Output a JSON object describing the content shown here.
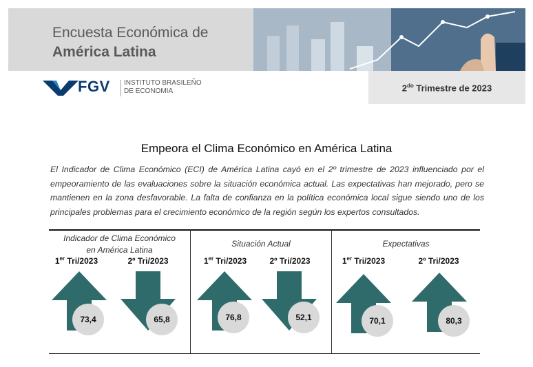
{
  "banner": {
    "title_line1": "Encuesta Económica de",
    "title_line2": "América Latina"
  },
  "logo": {
    "wordmark": "FGV",
    "subtitle_line1": "INSTITUTO BRASILEÑO",
    "subtitle_line2": "DE ECONOMIA",
    "brand_color": "#0b3b6e"
  },
  "quarter": {
    "number": "2",
    "superscript": "do",
    "text": " Trimestre de 2023"
  },
  "headline": "Empeora el Clima Económico en América Latina",
  "intro": "El Indicador de Clima Económico (ECI) de América Latina cayó en el 2º trimestre de 2023 influenciado por el empeoramiento de las evaluaciones sobre la situación económica actual. Las expectativas han mejorado, pero se mantienen en la zona desfavorable. La falta de confianza en la política económica local sigue siendo uno de los principales problemas para el crecimiento económico de la región según los expertos consultados.",
  "arrow_color": "#2e6b6a",
  "sections": [
    {
      "title_line1": "Indicador de Clima Económico",
      "title_line2": "en América Latina",
      "items": [
        {
          "q_num": "1",
          "q_sup": "er",
          "q_text": " Tri/2023",
          "direction": "up",
          "value": "73,4"
        },
        {
          "q_num": "2",
          "q_sup": "",
          "q_text": "º Tri/2023",
          "direction": "down",
          "value": "65,8"
        }
      ]
    },
    {
      "title_line1": "Situación Actual",
      "title_line2": "",
      "items": [
        {
          "q_num": "1",
          "q_sup": "er",
          "q_text": " Tri/2023",
          "direction": "up",
          "value": "76,8"
        },
        {
          "q_num": "2",
          "q_sup": "",
          "q_text": "º Tri/2023",
          "direction": "down",
          "value": "52,1"
        }
      ]
    },
    {
      "title_line1": "Expectativas",
      "title_line2": "",
      "items": [
        {
          "q_num": "1",
          "q_sup": "er",
          "q_text": " Tri/2023",
          "direction": "up",
          "value": "70,1"
        },
        {
          "q_num": "2",
          "q_sup": "",
          "q_text": "º Tri/2023",
          "direction": "up",
          "value": "80,3"
        }
      ]
    }
  ]
}
